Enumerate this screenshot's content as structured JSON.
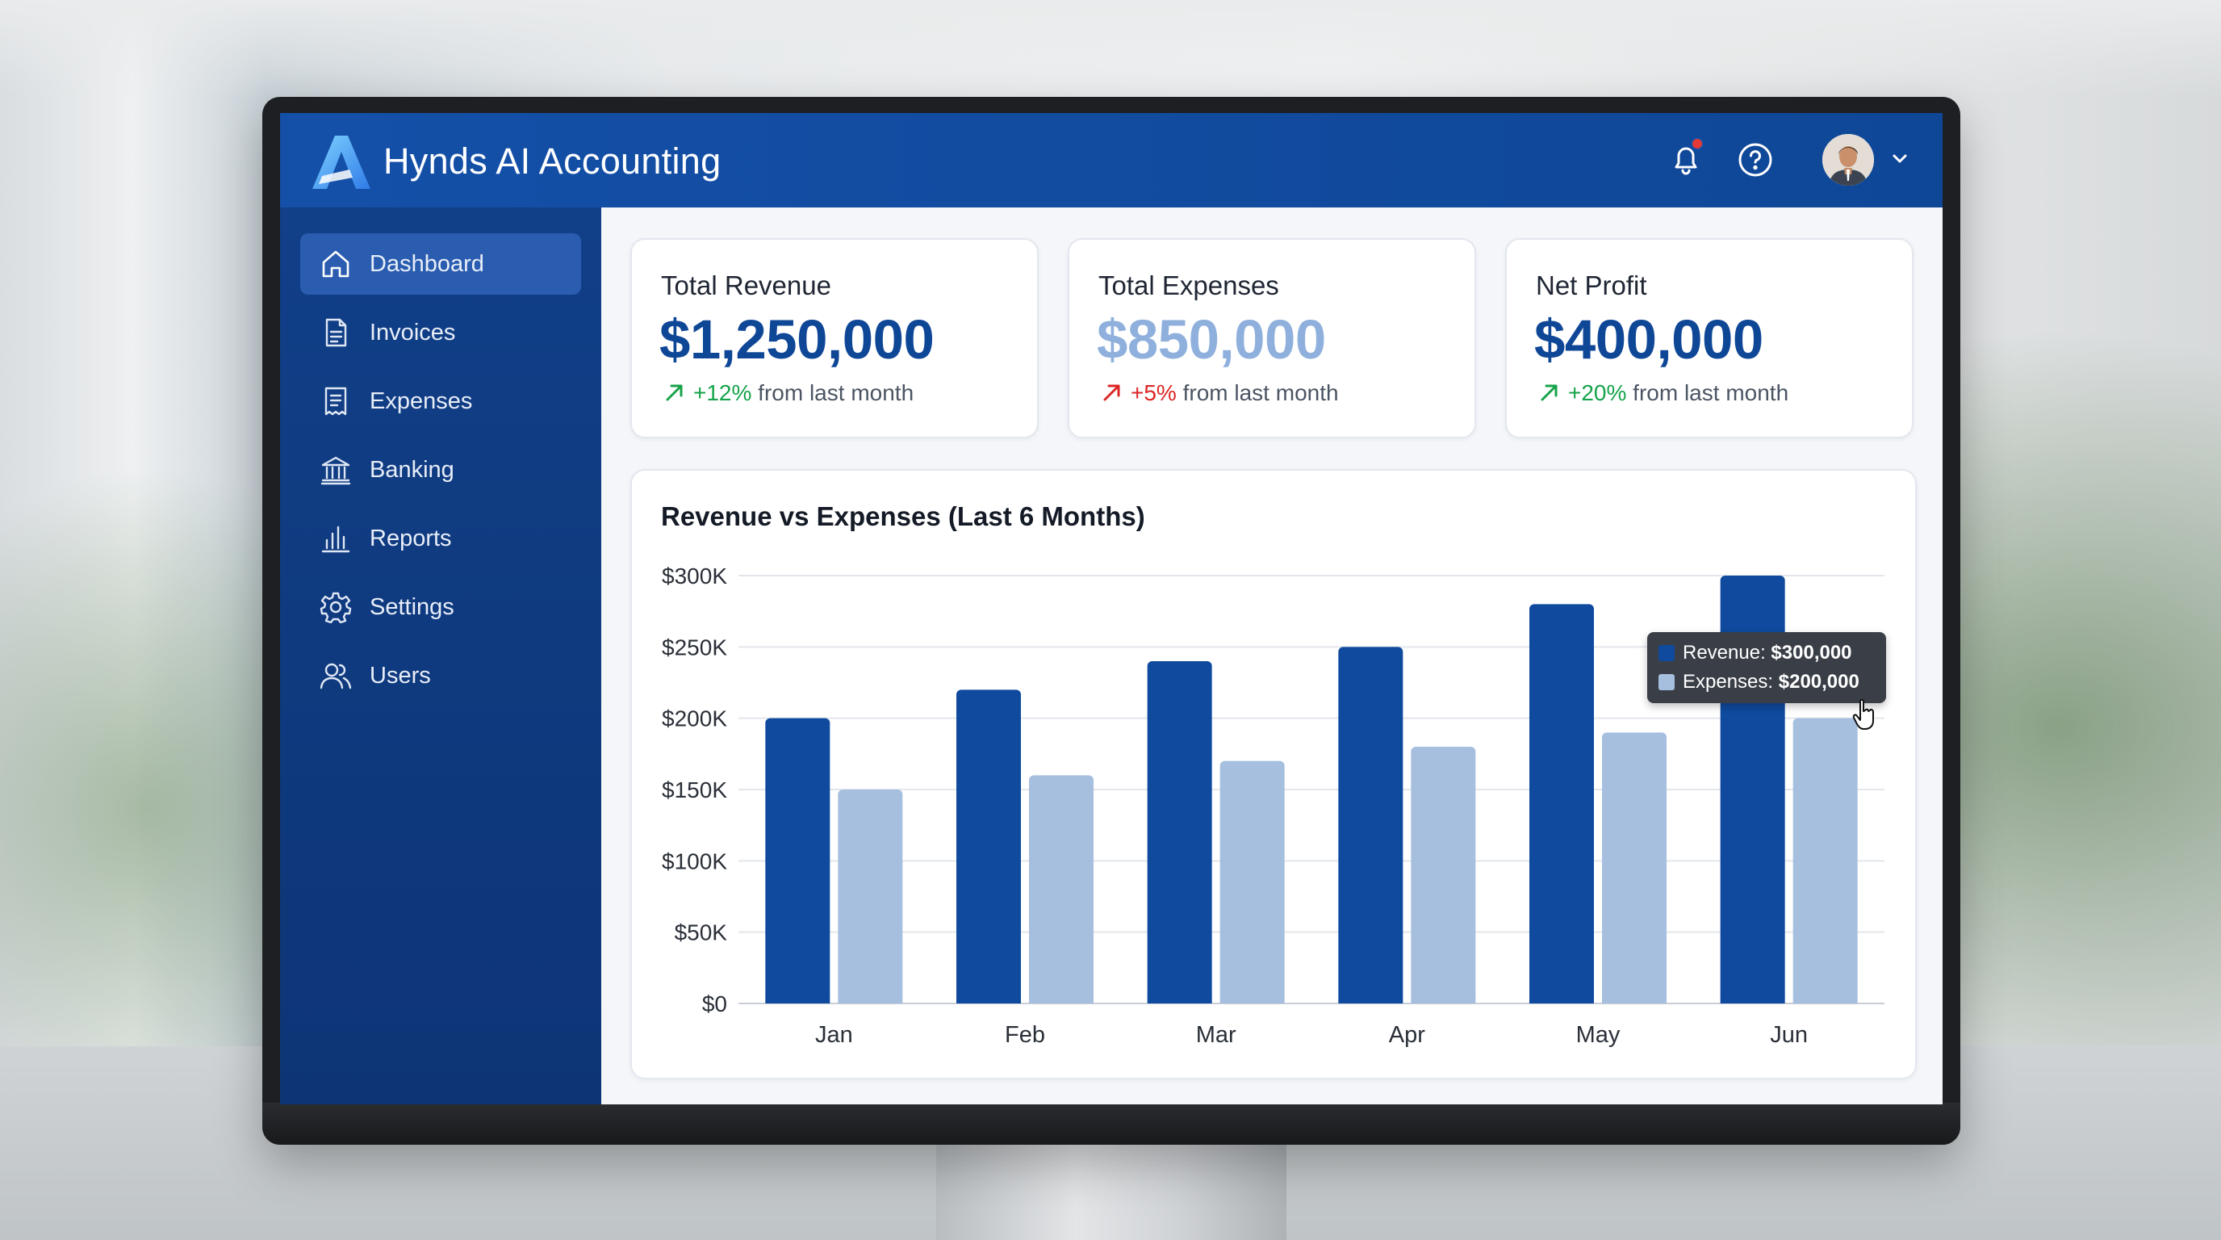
{
  "app": {
    "title": "Hynds AI Accounting",
    "brand_color": "#0f4797"
  },
  "header": {
    "icons": [
      "bell-icon",
      "help-icon",
      "avatar",
      "chevron-down-icon"
    ],
    "has_notification": true
  },
  "sidebar": {
    "items": [
      {
        "label": "Dashboard",
        "icon": "home-icon",
        "active": true
      },
      {
        "label": "Invoices",
        "icon": "document-icon",
        "active": false
      },
      {
        "label": "Expenses",
        "icon": "receipt-icon",
        "active": false
      },
      {
        "label": "Banking",
        "icon": "bank-icon",
        "active": false
      },
      {
        "label": "Reports",
        "icon": "bar-chart-icon",
        "active": false
      },
      {
        "label": "Settings",
        "icon": "gear-icon",
        "active": false
      },
      {
        "label": "Users",
        "icon": "users-icon",
        "active": false
      }
    ]
  },
  "kpis": [
    {
      "label": "Total Revenue",
      "value": "$1,250,000",
      "change": "+12%",
      "change_suffix": " from last month",
      "change_color": "#16a34a"
    },
    {
      "label": "Total Expenses",
      "value": "$850,000",
      "change": "+5%",
      "change_suffix": " from last month",
      "change_color": "#dc2626"
    },
    {
      "label": "Net Profit",
      "value": "$400,000",
      "change": "+20%",
      "change_suffix": " from last month",
      "change_color": "#16a34a"
    }
  ],
  "chart_data": {
    "type": "bar",
    "title": "Revenue vs Expenses (Last 6 Months)",
    "categories": [
      "Jan",
      "Feb",
      "Mar",
      "Apr",
      "May",
      "Jun"
    ],
    "series": [
      {
        "name": "Revenue",
        "values": [
          200000,
          220000,
          240000,
          250000,
          280000,
          300000
        ],
        "color": "#0f4a9e"
      },
      {
        "name": "Expenses",
        "values": [
          150000,
          160000,
          170000,
          180000,
          190000,
          200000
        ],
        "color": "#a6bfdf"
      }
    ],
    "y_ticks": [
      "$0",
      "$50K",
      "$100K",
      "$150K",
      "$200K",
      "$250K",
      "$300K"
    ],
    "ylim": [
      0,
      300000
    ],
    "grid": true,
    "tooltip": {
      "category": "Jun",
      "rows": [
        {
          "label": "Revenue:",
          "value": "$300,000"
        },
        {
          "label": "Expenses:",
          "value": "$200,000"
        }
      ]
    }
  }
}
